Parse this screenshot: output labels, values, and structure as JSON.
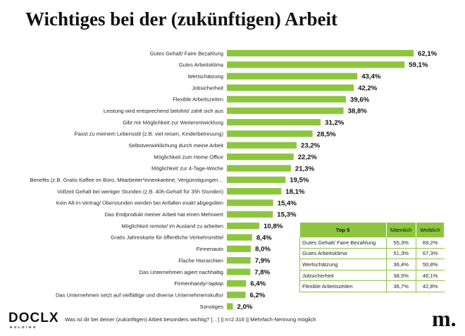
{
  "title": "Wichtiges bei der (zukünftigen) Arbeit",
  "chart_data": {
    "type": "bar",
    "orientation": "horizontal",
    "color": "#8cc63f",
    "xlim": [
      0,
      62.1
    ],
    "categories": [
      "Gutes Gehalt/ Faire Bezahlung",
      "Gutes Arbeitsklima",
      "Wertschätzung",
      "Jobsicherheit",
      "Flexible Arbeitszeiten",
      "Leistung wird entsprechend belohnt/ zahlt sich aus",
      "Gibt mir Möglichkeit zur Weiterentwicklung",
      "Passt zu meinem Lebensstil (z.B. viel reisen, Kinderbetreuung)",
      "Selbstverwirklichung durch meine Arbeit",
      "Möglichkeit zum Home Office",
      "Möglichkeit zur 4-Tage-Woche",
      "Benefits (z.B. Gratis Kaffee im Büro, Mitarbeiter*innenkantine, Vergünstigungen…",
      "Vollzeit Gehalt bei weniger Stunden (z.B. 40h-Gehalt für 35h Stunden)",
      "Kein All-In-Vertrag/ Überstunden werden bei Anfallen exakt abgegolten",
      "Das Endprodukt meiner Arbeit hat einen Mehrwert",
      "Möglichkeit remote/ im Ausland zu arbeiten",
      "Gratis Jahreskarte für öffentliche Verkehrsmittel",
      "Firmenauto",
      "Flache Hierarchien",
      "Das Unternehmen agiert nachhaltig",
      "Firmenhandy/-laptop",
      "Das Unternehmen setzt auf vielfältige und diverse Unternehmenskultur",
      "Sonstiges"
    ],
    "values": [
      62.1,
      59.1,
      43.4,
      42.2,
      39.6,
      38.8,
      31.2,
      28.5,
      23.2,
      22.2,
      21.3,
      19.5,
      18.1,
      15.4,
      15.3,
      10.8,
      8.4,
      8.0,
      7.9,
      7.8,
      6.4,
      6.2,
      2.0
    ],
    "value_labels": [
      "62,1%",
      "59,1%",
      "43,4%",
      "42,2%",
      "39,6%",
      "38,8%",
      "31,2%",
      "28,5%",
      "23,2%",
      "22,2%",
      "21,3%",
      "19,5%",
      "18,1%",
      "15,4%",
      "15,3%",
      "10,8%",
      "8,4%",
      "8,0%",
      "7,9%",
      "7,8%",
      "6,4%",
      "6,2%",
      "2,0%"
    ]
  },
  "top5_table": {
    "headers": [
      "Top 5",
      "Männlich",
      "Weiblich"
    ],
    "rows": [
      {
        "label": "Gutes Gehalt/ Faire Bezahlung",
        "male": "55,3%",
        "female": "69,2%"
      },
      {
        "label": "Gutes Arbeitsklima",
        "male": "51,3%",
        "female": "67,3%"
      },
      {
        "label": "Wertschätzung",
        "male": "36,4%",
        "female": "50,8%"
      },
      {
        "label": "Jobsicherheit",
        "male": "38,5%",
        "female": "46,1%"
      },
      {
        "label": "Flexible Arbeitszeiten",
        "male": "36,7%",
        "female": "42,8%"
      }
    ],
    "header_color": "#8cc63f"
  },
  "footer": "Was ist dir bei deiner (zukünftigen) Arbeit besonders wichtig? […] || n=2.316 || Mehrfach-Nennung möglich",
  "logos": {
    "docLx": "DOCLX",
    "docLx_sub": "HOLDING",
    "m": "m."
  }
}
